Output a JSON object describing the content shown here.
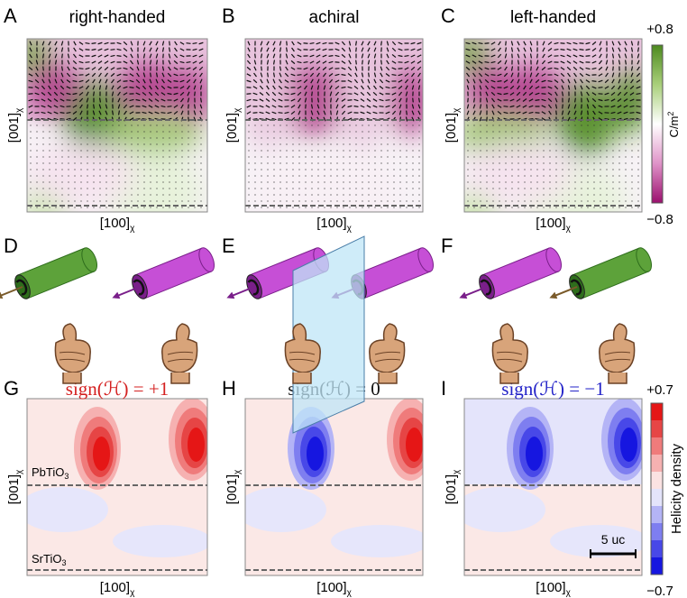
{
  "panels": [
    {
      "letter": "A",
      "title": "right-handed"
    },
    {
      "letter": "B",
      "title": "achiral"
    },
    {
      "letter": "C",
      "title": "left-handed"
    },
    {
      "letter": "D"
    },
    {
      "letter": "E"
    },
    {
      "letter": "F"
    },
    {
      "letter": "G",
      "title": "sign(ℋ) = +1"
    },
    {
      "letter": "H",
      "title": "sign(ℋ) = 0"
    },
    {
      "letter": "I",
      "title": "sign(ℋ) = −1"
    }
  ],
  "axis": {
    "x": "[100]",
    "y": "[001]",
    "sub": "χ"
  },
  "polarization_colorbar": {
    "max": "+0.8",
    "min": "−0.8",
    "unit": "C/m",
    "unit_sup": "2"
  },
  "helicity_colorbar": {
    "max": "+0.7",
    "min": "−0.7",
    "label": "Helicity density"
  },
  "layers": {
    "top": "PbTiO",
    "bottom": "SrTiO",
    "sub": "3"
  },
  "scale_bar": "5 uc"
}
